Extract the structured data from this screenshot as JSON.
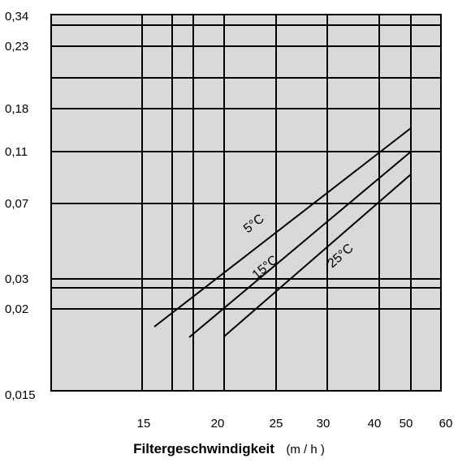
{
  "chart_data": {
    "type": "line",
    "xlabel": "Filtergeschwindigkeit",
    "xunit": "(m / h )",
    "ylabel": "",
    "y_tick_labels": [
      "0,34",
      "0,23",
      "0,18",
      "0,11",
      "0,07",
      "0,03",
      "0,02",
      "0,015"
    ],
    "x_tick_labels": [
      "15",
      "20",
      "25",
      "30",
      "40",
      "50",
      "60"
    ],
    "grid": true,
    "series": [
      {
        "name": "5°C",
        "x": [
          14,
          50
        ],
        "y": [
          0.017,
          0.136
        ]
      },
      {
        "name": "15°C",
        "x": [
          16,
          50
        ],
        "y": [
          0.016,
          0.11
        ]
      },
      {
        "name": "25°C",
        "x": [
          18,
          50
        ],
        "y": [
          0.016,
          0.09
        ]
      }
    ]
  },
  "colors": {
    "plot_bg": "#d9d9d9",
    "grid": "#000000",
    "curve": "#000000"
  }
}
